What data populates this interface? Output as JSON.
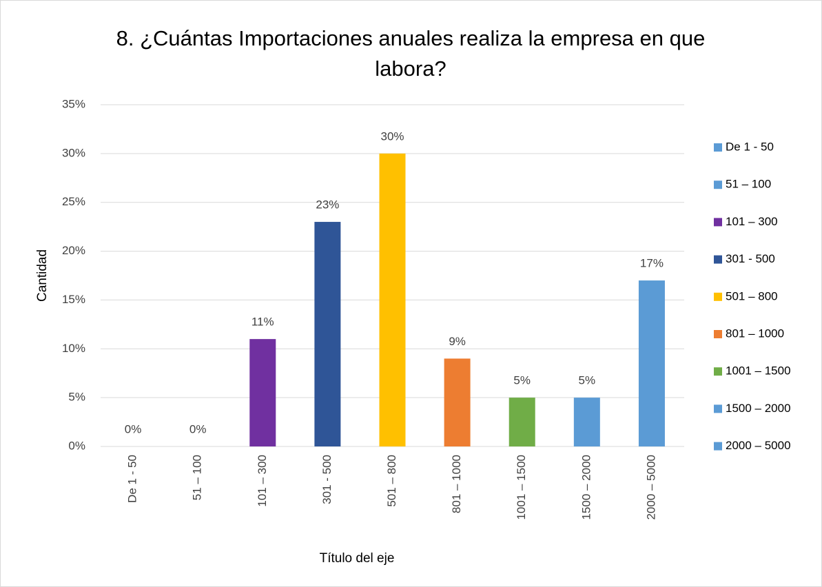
{
  "chart_data": {
    "type": "bar",
    "title": "8. ¿Cuántas Importaciones anuales realiza la empresa en que labora?",
    "x_label": "Título del eje",
    "y_label": "Cantidad",
    "categories": [
      "De 1 - 50",
      "51 – 100",
      "101 – 300",
      "301 - 500",
      "501 – 800",
      "801 – 1000",
      "1001 – 1500",
      "1500 – 2000",
      "2000 – 5000"
    ],
    "values": [
      0,
      0,
      11,
      23,
      30,
      9,
      5,
      5,
      17
    ],
    "value_labels": [
      "0%",
      "0%",
      "11%",
      "23%",
      "30%",
      "9%",
      "5%",
      "5%",
      "17%"
    ],
    "colors": [
      "#5b9bd5",
      "#5b9bd5",
      "#7030a0",
      "#2f5597",
      "#ffc000",
      "#ed7d31",
      "#70ad47",
      "#5b9bd5",
      "#5b9bd5"
    ],
    "ylim": [
      0,
      35
    ],
    "yticks": [
      {
        "value": 0,
        "label": "0%"
      },
      {
        "value": 5,
        "label": "5%"
      },
      {
        "value": 10,
        "label": "10%"
      },
      {
        "value": 15,
        "label": "15%"
      },
      {
        "value": 20,
        "label": "20%"
      },
      {
        "value": 25,
        "label": "25%"
      },
      {
        "value": 30,
        "label": "30%"
      },
      {
        "value": 35,
        "label": "35%"
      }
    ],
    "grid": true,
    "legend": "right"
  }
}
